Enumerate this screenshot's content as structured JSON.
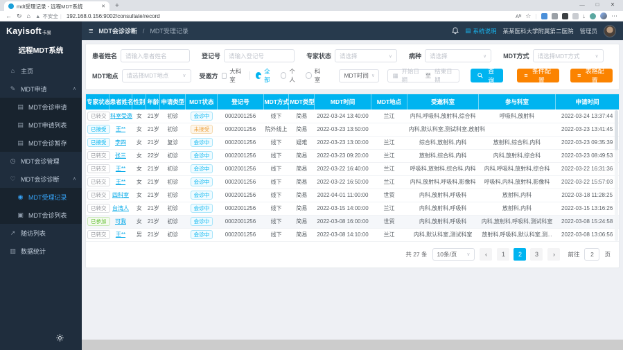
{
  "icons": {
    "back": "←",
    "refresh": "↻",
    "home": "⌂",
    "warning": "▲",
    "star": "☆",
    "more": "⋯",
    "read_aloud": "Aᴺ",
    "download": "↓",
    "minimize": "—",
    "maximize": "□",
    "close": "✕",
    "tab_close": "✕",
    "new_tab": "+",
    "collapse": "≡",
    "doc": "▤",
    "chevron_up": "∧",
    "chevron_down": "∨",
    "calendar": "▦",
    "config": "≡"
  },
  "browser": {
    "tab_title": "mdt受理记录 - 远程MDT系统",
    "security": "不安全",
    "url": "192.168.0.156:9002/consultate/record"
  },
  "app": {
    "logo": "Kayisoft",
    "logo_suffix": "卡易",
    "system_title": "远程MDT系统",
    "breadcrumb": {
      "section": "MDT会诊诊断",
      "separator": "/",
      "current": "MDT受理记录"
    },
    "topbar": {
      "help": "系统说明",
      "hospital": "某某医科大学附属第二医院",
      "role": "管理员"
    }
  },
  "sidebar": {
    "menu": [
      {
        "label": "主页",
        "icon": "home",
        "glyph": "⌂",
        "level": 1
      },
      {
        "label": "MDT申请",
        "icon": "edit",
        "glyph": "✎",
        "level": 1,
        "chevron": "up"
      },
      {
        "label": "MDT会诊申请",
        "icon": "form",
        "glyph": "▤",
        "level": 2
      },
      {
        "label": "MDT申请列表",
        "icon": "list",
        "glyph": "▤",
        "level": 2
      },
      {
        "label": "MDT会诊暂存",
        "icon": "list",
        "glyph": "▤",
        "level": 2
      },
      {
        "label": "MDT会诊管理",
        "icon": "clock",
        "glyph": "◷",
        "level": 1
      },
      {
        "label": "MDT会诊诊断",
        "icon": "heart",
        "glyph": "♡",
        "level": 1,
        "chevron": "up"
      },
      {
        "label": "MDT受理记录",
        "icon": "user",
        "glyph": "◉",
        "level": 2,
        "active": true
      },
      {
        "label": "MDT会诊列表",
        "icon": "shield",
        "glyph": "▣",
        "level": 2
      },
      {
        "label": "随访列表",
        "icon": "share",
        "glyph": "↗",
        "level": 1
      },
      {
        "label": "数据统计",
        "icon": "chart",
        "glyph": "▥",
        "level": 1
      }
    ]
  },
  "filters": {
    "fields": {
      "patient_name": {
        "label": "患者姓名",
        "placeholder": "请输入患者姓名"
      },
      "register_no": {
        "label": "登记号",
        "placeholder": "请输入登记号"
      },
      "expert_status": {
        "label": "专家状态",
        "placeholder": "请选择"
      },
      "disease": {
        "label": "病种",
        "placeholder": "请选择"
      },
      "mdt_mode": {
        "label": "MDT方式",
        "placeholder": "请选择MDT方式"
      },
      "mdt_place": {
        "label": "MDT地点",
        "placeholder": "请选择MDT地点"
      }
    },
    "invitee": {
      "label": "受邀方",
      "checkbox": "大科室",
      "radio_all": "全部",
      "radio_personal": "个人",
      "radio_dept": "科室"
    },
    "time_select": "MDT时间",
    "date_start": "开始日期",
    "date_to": "至",
    "date_end": "结束日期",
    "search_btn": "查询",
    "condition_btn": "条件配置",
    "table_btn": "表格配置"
  },
  "table": {
    "headers": [
      "专家状态",
      "患者姓名",
      "性别",
      "年龄",
      "申请类型",
      "MDT状态",
      "登记号",
      "MDT方式",
      "MDT类型",
      "MDT时间",
      "MDT地点",
      "受邀科室",
      "参与科室",
      "申请时间"
    ],
    "rows": [
      {
        "expert": {
          "text": "已转交",
          "type": "gray"
        },
        "name": "科室受邀",
        "gender": "女",
        "age": "21岁",
        "apply_type": "初诊",
        "status": {
          "text": "会诊中",
          "type": "cyan"
        },
        "reg_no": "0002001256",
        "mode": "线下",
        "mdt_type": "简易",
        "time": "2022-03-24 13:40:00",
        "place": "兰江",
        "invited": "内科,呼吸科,放射科,综合科",
        "joined": "呼吸科,放射科",
        "applied": "2022-03-24 13:37:44",
        "highlight": false
      },
      {
        "expert": {
          "text": "已接受",
          "type": "cyan"
        },
        "name": "王**",
        "gender": "女",
        "age": "21岁",
        "apply_type": "初诊",
        "status": {
          "text": "未接受",
          "type": "orange"
        },
        "reg_no": "0002001256",
        "mode": "院外线上",
        "mdt_type": "简易",
        "time": "2022-03-23 13:50:00",
        "place": "",
        "invited": "内科,默认科室,测试科室,放射科",
        "joined": "",
        "applied": "2022-03-23 13:41:45",
        "highlight": false
      },
      {
        "expert": {
          "text": "已接受",
          "type": "cyan"
        },
        "name": "李四",
        "gender": "女",
        "age": "21岁",
        "apply_type": "复诊",
        "status": {
          "text": "会诊中",
          "type": "cyan"
        },
        "reg_no": "0002001256",
        "mode": "线下",
        "mdt_type": "疑难",
        "time": "2022-03-23 13:00:00",
        "place": "兰江",
        "invited": "综合科,放射科,内科",
        "joined": "放射科,综合科,内科",
        "applied": "2022-03-23 09:35:39",
        "highlight": false
      },
      {
        "expert": {
          "text": "已转交",
          "type": "gray"
        },
        "name": "张三",
        "gender": "女",
        "age": "22岁",
        "apply_type": "初诊",
        "status": {
          "text": "会诊中",
          "type": "cyan"
        },
        "reg_no": "0002001256",
        "mode": "线下",
        "mdt_type": "简易",
        "time": "2022-03-23 09:20:00",
        "place": "兰江",
        "invited": "放射科,综合科,内科",
        "joined": "内科,放射科,综合科",
        "applied": "2022-03-23 08:49:53",
        "highlight": false
      },
      {
        "expert": {
          "text": "已转交",
          "type": "gray"
        },
        "name": "王**",
        "gender": "女",
        "age": "21岁",
        "apply_type": "初诊",
        "status": {
          "text": "会诊中",
          "type": "cyan"
        },
        "reg_no": "0002001256",
        "mode": "线下",
        "mdt_type": "简易",
        "time": "2022-03-22 16:40:00",
        "place": "兰江",
        "invited": "呼吸科,放射科,综合科,内科",
        "joined": "内科,呼吸科,放射科,综合科",
        "applied": "2022-03-22 16:31:36",
        "highlight": false
      },
      {
        "expert": {
          "text": "已转交",
          "type": "gray"
        },
        "name": "王**",
        "gender": "女",
        "age": "21岁",
        "apply_type": "初诊",
        "status": {
          "text": "会诊中",
          "type": "cyan"
        },
        "reg_no": "0002001256",
        "mode": "线下",
        "mdt_type": "简易",
        "time": "2022-03-22 16:50:00",
        "place": "兰江",
        "invited": "内科,放射科,呼吸科,影像科",
        "joined": "呼吸科,内科,放射科,影像科",
        "applied": "2022-03-22 15:57:03",
        "highlight": false
      },
      {
        "expert": {
          "text": "已转交",
          "type": "gray"
        },
        "name": "四科室",
        "gender": "女",
        "age": "21岁",
        "apply_type": "初诊",
        "status": {
          "text": "会诊中",
          "type": "cyan"
        },
        "reg_no": "0002001256",
        "mode": "线下",
        "mdt_type": "简易",
        "time": "2022-04-01 11:00:00",
        "place": "世贸",
        "invited": "内科,放射科,呼吸科",
        "joined": "放射科,内科",
        "applied": "2022-03-18 11:28:25",
        "highlight": false
      },
      {
        "expert": {
          "text": "已转交",
          "type": "gray"
        },
        "name": "台湾人",
        "gender": "女",
        "age": "21岁",
        "apply_type": "初诊",
        "status": {
          "text": "会诊中",
          "type": "cyan"
        },
        "reg_no": "0002001256",
        "mode": "线下",
        "mdt_type": "简易",
        "time": "2022-03-15 14:00:00",
        "place": "兰江",
        "invited": "内科,放射科,呼吸科",
        "joined": "放射科,内科",
        "applied": "2022-03-15 13:16:26",
        "highlight": false
      },
      {
        "expert": {
          "text": "已参加",
          "type": "green"
        },
        "name": "可我",
        "gender": "女",
        "age": "21岁",
        "apply_type": "初诊",
        "status": {
          "text": "会诊中",
          "type": "cyan"
        },
        "reg_no": "0002001256",
        "mode": "线下",
        "mdt_type": "简易",
        "time": "2022-03-08 16:00:00",
        "place": "世贸",
        "invited": "内科,放射科,呼吸科",
        "joined": "内科,放射科,呼吸科,测试科室",
        "applied": "2022-03-08 15:24:58",
        "highlight": true
      },
      {
        "expert": {
          "text": "已转交",
          "type": "gray"
        },
        "name": "王**",
        "gender": "男",
        "age": "21岁",
        "apply_type": "初诊",
        "status": {
          "text": "会诊中",
          "type": "cyan"
        },
        "reg_no": "0002001256",
        "mode": "线下",
        "mdt_type": "简易",
        "time": "2022-03-08 14:10:00",
        "place": "兰江",
        "invited": "内科,默认科室,测试科室",
        "joined": "放射科,呼吸科,默认科室,测...",
        "applied": "2022-03-08 13:06:56",
        "highlight": false
      }
    ]
  },
  "pagination": {
    "total": "共 27 条",
    "page_size": "10条/页",
    "prev": "‹",
    "next": "›",
    "pages": [
      "1",
      "2",
      "3"
    ],
    "active": "2",
    "goto_label": "前往",
    "goto_value": "2",
    "goto_unit": "页"
  }
}
